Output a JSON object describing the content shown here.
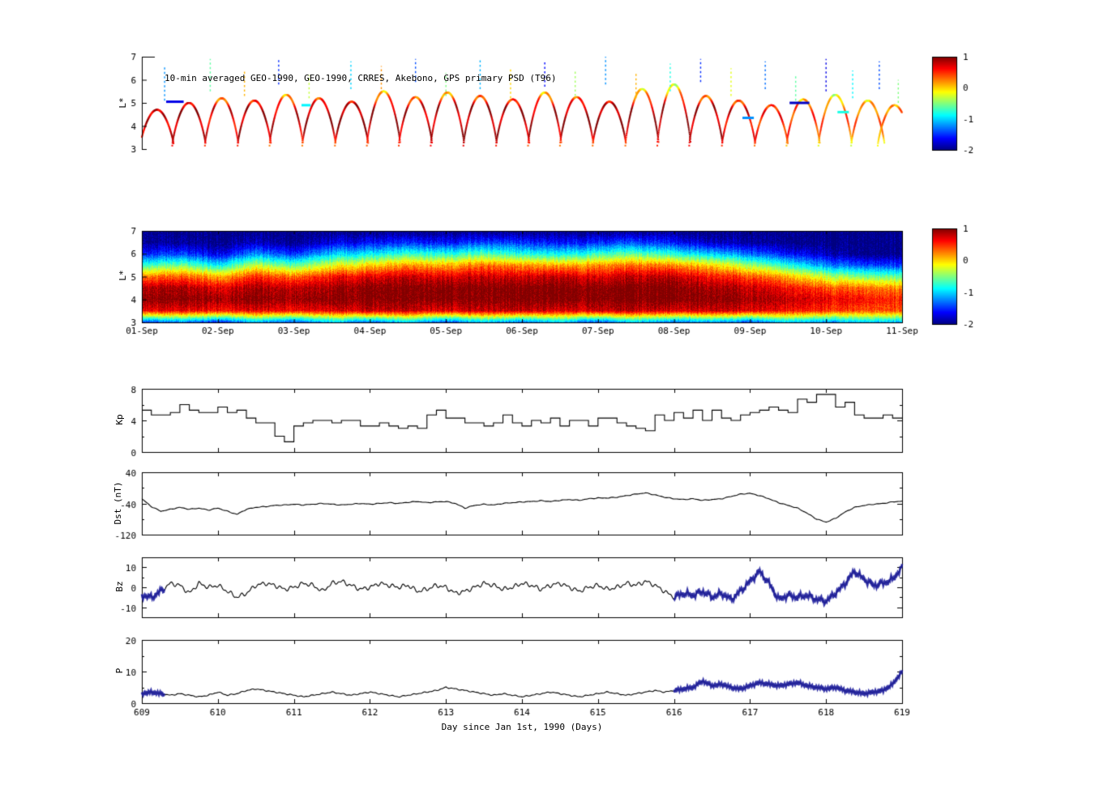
{
  "chart_data": [
    {
      "id": "psd-scatter",
      "type": "scatter",
      "title": "10-min averaged GEO-1990, GEO-1990, CRRES, Akebono, GPS primary PSD (T96)",
      "ylabel": "L*",
      "ylim": [
        3,
        7
      ],
      "yticks": [
        3,
        4,
        5,
        6,
        7
      ],
      "xlim_days": [
        0,
        10
      ],
      "colorbar": {
        "ticks": [
          1,
          0,
          -1,
          -2
        ],
        "vmin": -2,
        "vmax": 1,
        "colormap": "jet"
      },
      "orbit_arcs": [
        {
          "t": 0.2,
          "peak": 4.7,
          "v": 0.75
        },
        {
          "t": 0.62,
          "peak": 5.0,
          "v": 0.85
        },
        {
          "t": 1.05,
          "peak": 5.2,
          "v": 0.7
        },
        {
          "t": 1.48,
          "peak": 5.1,
          "v": 0.85
        },
        {
          "t": 1.9,
          "peak": 5.35,
          "v": 0.75
        },
        {
          "t": 2.33,
          "peak": 5.2,
          "v": 0.85
        },
        {
          "t": 2.76,
          "peak": 5.05,
          "v": 0.9
        },
        {
          "t": 3.18,
          "peak": 5.5,
          "v": 0.85
        },
        {
          "t": 3.6,
          "peak": 5.25,
          "v": 0.8
        },
        {
          "t": 4.02,
          "peak": 5.45,
          "v": 0.85
        },
        {
          "t": 4.45,
          "peak": 5.3,
          "v": 0.9
        },
        {
          "t": 4.88,
          "peak": 5.15,
          "v": 0.85
        },
        {
          "t": 5.3,
          "peak": 5.45,
          "v": 0.8
        },
        {
          "t": 5.72,
          "peak": 5.25,
          "v": 0.85
        },
        {
          "t": 6.15,
          "peak": 5.05,
          "v": 0.9
        },
        {
          "t": 6.58,
          "peak": 5.6,
          "v": 0.85
        },
        {
          "t": 7.0,
          "peak": 5.8,
          "v": 0.9
        },
        {
          "t": 7.42,
          "peak": 5.3,
          "v": 0.85
        },
        {
          "t": 7.85,
          "peak": 5.1,
          "v": 0.7
        },
        {
          "t": 8.28,
          "peak": 4.9,
          "v": 0.55
        },
        {
          "t": 8.7,
          "peak": 5.15,
          "v": 0.45
        },
        {
          "t": 9.12,
          "peak": 5.35,
          "v": 0.35
        },
        {
          "t": 9.55,
          "peak": 5.1,
          "v": 0.3
        },
        {
          "t": 9.9,
          "peak": 4.9,
          "v": 0.25
        }
      ],
      "spikes": [
        {
          "t": 0.3,
          "l1": 5.1,
          "l2": 6.6,
          "v": -1.2
        },
        {
          "t": 0.9,
          "l1": 5.5,
          "l2": 6.9,
          "v": -0.6
        },
        {
          "t": 1.35,
          "l1": 5.3,
          "l2": 6.4,
          "v": 0.1
        },
        {
          "t": 1.8,
          "l1": 5.8,
          "l2": 6.9,
          "v": -1.5
        },
        {
          "t": 2.2,
          "l1": 5.2,
          "l2": 6.2,
          "v": -0.3
        },
        {
          "t": 2.75,
          "l1": 5.6,
          "l2": 6.8,
          "v": -1.0
        },
        {
          "t": 3.15,
          "l1": 5.4,
          "l2": 6.6,
          "v": 0.2
        },
        {
          "t": 3.6,
          "l1": 5.9,
          "l2": 6.9,
          "v": -1.4
        },
        {
          "t": 4.0,
          "l1": 5.3,
          "l2": 6.3,
          "v": -0.5
        },
        {
          "t": 4.45,
          "l1": 5.6,
          "l2": 6.9,
          "v": -1.1
        },
        {
          "t": 4.85,
          "l1": 5.2,
          "l2": 6.5,
          "v": 0.0
        },
        {
          "t": 5.3,
          "l1": 5.7,
          "l2": 6.8,
          "v": -1.6
        },
        {
          "t": 5.7,
          "l1": 5.3,
          "l2": 6.4,
          "v": -0.4
        },
        {
          "t": 6.1,
          "l1": 5.8,
          "l2": 7.0,
          "v": -1.2
        },
        {
          "t": 6.5,
          "l1": 5.2,
          "l2": 6.3,
          "v": 0.1
        },
        {
          "t": 6.95,
          "l1": 5.5,
          "l2": 6.7,
          "v": -0.8
        },
        {
          "t": 7.35,
          "l1": 5.9,
          "l2": 6.9,
          "v": -1.5
        },
        {
          "t": 7.75,
          "l1": 5.3,
          "l2": 6.5,
          "v": -0.2
        },
        {
          "t": 8.2,
          "l1": 5.6,
          "l2": 6.8,
          "v": -1.3
        },
        {
          "t": 8.6,
          "l1": 5.1,
          "l2": 6.2,
          "v": -0.6
        },
        {
          "t": 9.0,
          "l1": 5.5,
          "l2": 6.9,
          "v": -1.7
        },
        {
          "t": 9.35,
          "l1": 5.2,
          "l2": 6.4,
          "v": -0.9
        },
        {
          "t": 9.7,
          "l1": 5.6,
          "l2": 6.8,
          "v": -1.4
        },
        {
          "t": 9.95,
          "l1": 5.0,
          "l2": 6.0,
          "v": -0.5
        }
      ],
      "dashes": [
        {
          "t1": 0.32,
          "t2": 0.55,
          "l": 5.05,
          "v": -1.7
        },
        {
          "t1": 8.52,
          "t2": 8.78,
          "l": 5.0,
          "v": -1.8
        },
        {
          "t1": 2.1,
          "t2": 2.22,
          "l": 4.9,
          "v": -0.9
        },
        {
          "t1": 7.9,
          "t2": 8.05,
          "l": 4.35,
          "v": -1.2
        },
        {
          "t1": 9.15,
          "t2": 9.3,
          "l": 4.6,
          "v": -0.8
        }
      ]
    },
    {
      "id": "psd-heatmap",
      "type": "heatmap",
      "ylabel": "L*",
      "ylim": [
        3,
        7
      ],
      "yticks": [
        3,
        4,
        5,
        6,
        7
      ],
      "x_tick_labels": [
        "01-Sep",
        "02-Sep",
        "03-Sep",
        "04-Sep",
        "05-Sep",
        "06-Sep",
        "07-Sep",
        "08-Sep",
        "09-Sep",
        "10-Sep",
        "11-Sep"
      ],
      "colorbar": {
        "ticks": [
          1,
          0,
          -1,
          -2
        ],
        "vmin": -2,
        "vmax": 1,
        "colormap": "jet"
      },
      "grid": {
        "l_values": [
          3,
          3.5,
          4,
          4.5,
          5,
          5.5,
          6,
          6.5,
          7
        ],
        "day_step": 0.5,
        "columns": [
          [
            -1.5,
            0.6,
            0.9,
            0.8,
            0.2,
            -0.8,
            -1.6,
            -2,
            -2
          ],
          [
            -1.2,
            0.7,
            1.0,
            0.9,
            0.4,
            -0.5,
            -1.4,
            -1.9,
            -2
          ],
          [
            -1.5,
            0.6,
            0.9,
            0.7,
            0.1,
            -0.9,
            -1.7,
            -2,
            -2
          ],
          [
            -1.1,
            0.7,
            1.0,
            0.9,
            0.5,
            -0.3,
            -1.2,
            -1.8,
            -2
          ],
          [
            -1.4,
            0.6,
            0.9,
            0.8,
            0.3,
            -0.6,
            -1.5,
            -2,
            -2
          ],
          [
            -1.0,
            0.7,
            1.0,
            0.9,
            0.6,
            -0.2,
            -1.0,
            -1.7,
            -2
          ],
          [
            -1.3,
            0.8,
            1.0,
            1.0,
            0.7,
            0.0,
            -0.9,
            -1.6,
            -2
          ],
          [
            -1.0,
            0.8,
            1.0,
            1.0,
            0.8,
            0.2,
            -0.7,
            -1.5,
            -2
          ],
          [
            -1.4,
            0.7,
            1.0,
            1.0,
            0.7,
            0.1,
            -0.8,
            -1.6,
            -2
          ],
          [
            -1.0,
            0.8,
            1.0,
            1.0,
            0.8,
            0.3,
            -0.6,
            -1.4,
            -2
          ],
          [
            -1.3,
            0.8,
            1.0,
            1.0,
            0.7,
            0.2,
            -0.8,
            -1.5,
            -2
          ],
          [
            -1.0,
            0.7,
            1.0,
            1.0,
            0.8,
            0.1,
            -0.9,
            -1.6,
            -2
          ],
          [
            -1.4,
            0.8,
            1.0,
            1.0,
            0.7,
            0.2,
            -0.7,
            -1.5,
            -2
          ],
          [
            -1.0,
            0.8,
            1.0,
            1.0,
            0.8,
            0.3,
            -0.6,
            -1.4,
            -2
          ],
          [
            -1.3,
            0.7,
            1.0,
            1.0,
            0.8,
            0.2,
            -0.8,
            -1.6,
            -2
          ],
          [
            -1.1,
            0.8,
            1.0,
            0.9,
            0.6,
            0.0,
            -1.0,
            -1.8,
            -2
          ],
          [
            -1.4,
            0.7,
            0.9,
            0.8,
            0.4,
            -0.4,
            -1.3,
            -1.9,
            -2
          ],
          [
            -1.0,
            0.6,
            0.8,
            0.6,
            0.1,
            -0.8,
            -1.6,
            -2,
            -2
          ],
          [
            -1.2,
            0.5,
            0.7,
            0.4,
            -0.3,
            -1.2,
            -1.8,
            -2,
            -2
          ],
          [
            -1.0,
            0.4,
            0.6,
            0.3,
            -0.5,
            -1.4,
            -2,
            -2,
            -2
          ],
          [
            -1.1,
            0.4,
            0.5,
            0.2,
            -0.6,
            -1.5,
            -2,
            -2,
            -2
          ]
        ]
      }
    },
    {
      "id": "kp",
      "type": "line",
      "step": true,
      "ylabel": "Kp",
      "ylim": [
        0,
        8
      ],
      "yticks": [
        0,
        4,
        8
      ],
      "yticks_minor": [
        2,
        6
      ],
      "x_start": 609,
      "x_step": 0.125,
      "values": [
        5.3,
        4.7,
        4.7,
        5.0,
        6.0,
        5.3,
        5.0,
        5.0,
        5.7,
        5.0,
        5.3,
        4.3,
        3.7,
        3.7,
        2.0,
        1.3,
        3.3,
        3.7,
        4.0,
        4.0,
        3.7,
        4.0,
        4.0,
        3.3,
        3.3,
        3.7,
        3.3,
        3.0,
        3.3,
        3.0,
        4.7,
        5.3,
        4.3,
        4.3,
        3.7,
        3.7,
        3.3,
        3.7,
        4.7,
        3.7,
        3.3,
        4.0,
        3.7,
        4.3,
        3.3,
        4.0,
        4.0,
        3.3,
        4.3,
        4.3,
        3.7,
        3.3,
        3.0,
        2.7,
        4.7,
        4.0,
        5.0,
        4.3,
        5.3,
        4.0,
        5.3,
        4.3,
        4.0,
        4.7,
        5.0,
        5.3,
        5.7,
        5.3,
        5.0,
        6.7,
        6.3,
        7.3,
        7.3,
        5.7,
        6.3,
        4.7,
        4.3,
        4.3,
        4.7,
        4.3,
        4.3
      ]
    },
    {
      "id": "dst",
      "type": "line",
      "ylabel": "Dst (nT)",
      "ylim": [
        -120,
        40
      ],
      "yticks": [
        -120,
        -40,
        40
      ],
      "yticks_minor": [
        -80,
        0
      ],
      "x_start": 609,
      "x_step": 0.125,
      "values": [
        -28,
        -48,
        -60,
        -55,
        -50,
        -55,
        -52,
        -57,
        -52,
        -60,
        -68,
        -55,
        -50,
        -48,
        -45,
        -44,
        -42,
        -44,
        -42,
        -40,
        -42,
        -44,
        -42,
        -40,
        -42,
        -40,
        -38,
        -40,
        -37,
        -35,
        -38,
        -36,
        -35,
        -40,
        -52,
        -45,
        -42,
        -44,
        -40,
        -38,
        -36,
        -35,
        -33,
        -35,
        -32,
        -30,
        -32,
        -28,
        -26,
        -26,
        -24,
        -20,
        -16,
        -13,
        -18,
        -24,
        -28,
        -30,
        -28,
        -32,
        -30,
        -28,
        -22,
        -16,
        -14,
        -20,
        -28,
        -38,
        -45,
        -52,
        -65,
        -80,
        -88,
        -78,
        -62,
        -50,
        -45,
        -42,
        -40,
        -36,
        -34
      ]
    },
    {
      "id": "bz",
      "type": "line",
      "ylabel": "Bz",
      "ylim": [
        -15,
        15
      ],
      "yticks": [
        -10,
        0,
        10
      ],
      "yticks_minor": [
        -5,
        5
      ],
      "x_start": 609,
      "x_step": 0.125,
      "highlight_ranges": [
        [
          609,
          609.3
        ],
        [
          616,
          619
        ]
      ],
      "highlight_color": "#1c1c9c",
      "values": [
        -4,
        -5,
        -2,
        2,
        1,
        -3,
        2,
        0,
        1,
        -2,
        -5,
        -3,
        1,
        2,
        1,
        -1,
        0,
        2,
        1,
        -2,
        2,
        3,
        1,
        -1,
        0,
        2,
        1,
        0,
        1,
        -2,
        -1,
        1,
        0,
        -3,
        -2,
        0,
        2,
        1,
        -1,
        0,
        2,
        1,
        -1,
        1,
        2,
        0,
        -2,
        0,
        1,
        -1,
        0,
        2,
        1,
        3,
        1,
        -2,
        -5,
        -3,
        -4,
        -2,
        -5,
        -3,
        -6,
        -2,
        3,
        8,
        2,
        -6,
        -4,
        -5,
        -4,
        -6,
        -7,
        -3,
        2,
        8,
        4,
        1,
        2,
        4,
        10
      ]
    },
    {
      "id": "p",
      "type": "line",
      "ylabel": "P",
      "ylim": [
        0,
        20
      ],
      "yticks": [
        0,
        10,
        20
      ],
      "yticks_minor": [
        5,
        15
      ],
      "x_start": 609,
      "x_step": 0.125,
      "highlight_ranges": [
        [
          609,
          609.3
        ],
        [
          616,
          619
        ]
      ],
      "highlight_color": "#1c1c9c",
      "xlabel": "Day since Jan 1st, 1990 (Days)",
      "xticks": [
        609,
        610,
        611,
        612,
        613,
        614,
        615,
        616,
        617,
        618,
        619
      ],
      "values": [
        3,
        3.5,
        3,
        2.5,
        3,
        2.5,
        2,
        2.5,
        3.5,
        2.5,
        3,
        4,
        4.5,
        4,
        3.5,
        3,
        2.5,
        2,
        2.5,
        3,
        3.5,
        3,
        2.5,
        3,
        3.5,
        3,
        2.5,
        2,
        2.5,
        3,
        3.5,
        4,
        5,
        4.5,
        4,
        3.5,
        3,
        2.5,
        3,
        2.5,
        2,
        2.5,
        3,
        3.5,
        3,
        2.5,
        2,
        2.5,
        3,
        3.5,
        3,
        2.5,
        3,
        3.5,
        4,
        3.5,
        4,
        4.5,
        5,
        7,
        5.5,
        6,
        5,
        4.5,
        5.5,
        6.5,
        6,
        5.5,
        6,
        6.5,
        5.5,
        5,
        4.5,
        5,
        4,
        3.5,
        3,
        3.5,
        4,
        6,
        10
      ]
    }
  ]
}
